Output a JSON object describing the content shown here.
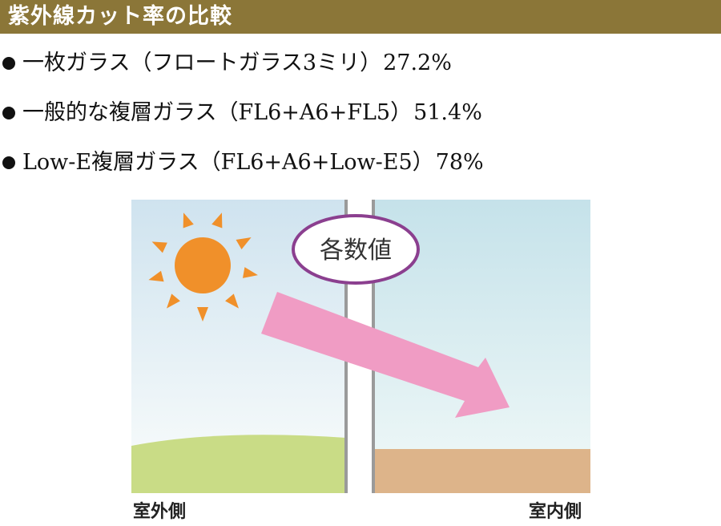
{
  "header": {
    "title": "紫外線カット率の比較"
  },
  "glass_types": [
    {
      "name": "一枚ガラス（フロートガラス3ミリ）",
      "cut_rate": "27.2%"
    },
    {
      "name": "一般的な複層ガラス（FL6+A6+FL5）",
      "cut_rate": "51.4%"
    },
    {
      "name": "Low-E複層ガラス（FL6+A6+Low-E5）",
      "cut_rate": "78%"
    }
  ],
  "diagram": {
    "bubble_label": "各数値",
    "outside_label": "室外側",
    "inside_label": "室内側",
    "colors": {
      "sky_outside": "#cfe3ef",
      "sky_inside": "#c5e2ea",
      "sun": "#f0902a",
      "arrow": "#f09cc4",
      "bubble_border": "#8b3f8f",
      "grass": "#c9dc86",
      "floor": "#ddb48a",
      "glass_pane": "#ffffff",
      "glass_frame": "#9a9a9a"
    }
  },
  "palette": {
    "header_bg": "#8b7638",
    "header_text": "#ffffff"
  }
}
